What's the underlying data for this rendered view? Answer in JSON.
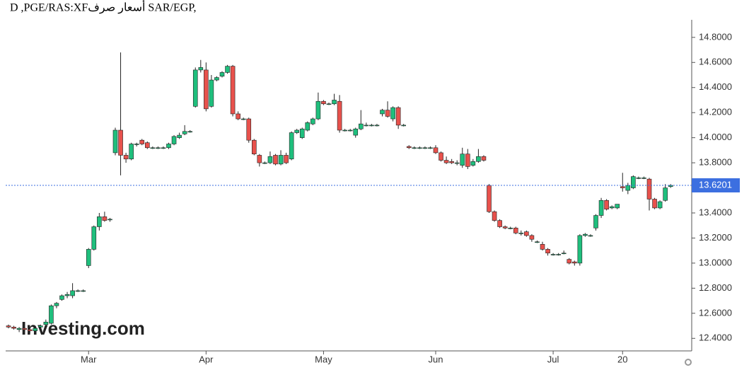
{
  "chart_data": {
    "type": "candlestick",
    "title": "D ,PGE/RAS:XFأسعار صرف SAR/EGP,",
    "watermark": "Investing.com",
    "categories": [
      null,
      null,
      null,
      null,
      null,
      null,
      null,
      null,
      null,
      null,
      null,
      null,
      null,
      null,
      null,
      "Mar",
      null,
      null,
      null,
      null,
      null,
      null,
      null,
      null,
      null,
      null,
      null,
      null,
      null,
      null,
      null,
      null,
      null,
      null,
      null,
      null,
      null,
      "Apr",
      null,
      null,
      null,
      null,
      null,
      null,
      null,
      null,
      null,
      null,
      null,
      null,
      null,
      null,
      null,
      null,
      null,
      null,
      null,
      null,
      null,
      "May",
      null,
      null,
      null,
      null,
      null,
      null,
      null,
      null,
      null,
      null,
      null,
      null,
      null,
      null,
      null,
      null,
      null,
      null,
      null,
      null,
      "Jun",
      null,
      null,
      null,
      null,
      null,
      null,
      null,
      null,
      null,
      null,
      null,
      null,
      null,
      null,
      null,
      null,
      null,
      null,
      null,
      null,
      null,
      "Jul",
      null,
      null,
      null,
      null,
      null,
      null,
      null,
      null,
      null,
      null,
      null,
      null,
      "20",
      null,
      null,
      null,
      null,
      null,
      null,
      null,
      null,
      null
    ],
    "open": [
      12.5,
      12.49,
      12.47,
      12.48,
      12.47,
      12.46,
      12.49,
      12.51,
      12.52,
      12.66,
      12.71,
      12.74,
      12.74,
      12.78,
      12.78,
      12.98,
      13.11,
      13.29,
      13.37,
      13.35,
      13.88,
      14.06,
      13.86,
      13.83,
      13.95,
      13.98,
      13.96,
      13.92,
      13.92,
      13.92,
      13.92,
      13.95,
      14.0,
      14.03,
      14.05,
      14.25,
      14.54,
      14.54,
      14.25,
      14.46,
      14.49,
      14.52,
      14.57,
      14.19,
      14.15,
      14.15,
      13.98,
      13.86,
      13.8,
      13.8,
      13.86,
      13.79,
      13.86,
      13.83,
      14.04,
      14.0,
      14.06,
      14.11,
      14.15,
      14.29,
      14.27,
      14.27,
      14.29,
      14.06,
      14.06,
      14.02,
      14.07,
      14.1,
      14.1,
      14.1,
      14.19,
      14.22,
      14.15,
      14.24,
      14.1,
      13.93,
      13.92,
      13.92,
      13.92,
      13.92,
      13.92,
      13.88,
      13.82,
      13.81,
      13.8,
      13.78,
      13.87,
      13.78,
      13.81,
      13.85,
      13.62,
      13.41,
      13.34,
      13.29,
      13.28,
      13.28,
      13.24,
      13.25,
      13.22,
      13.17,
      13.15,
      13.11,
      13.07,
      13.07,
      13.08,
      13.03,
      13.01,
      13.0,
      13.22,
      13.22,
      13.28,
      13.38,
      13.5,
      13.44,
      13.44,
      13.61,
      13.58,
      13.6,
      13.68,
      13.68,
      13.67,
      13.51,
      13.44,
      13.5,
      13.61
    ],
    "high": [
      12.51,
      12.5,
      12.49,
      12.49,
      12.48,
      12.49,
      12.51,
      12.55,
      12.67,
      12.69,
      12.75,
      12.77,
      12.84,
      12.79,
      12.79,
      13.12,
      13.3,
      13.4,
      13.41,
      13.36,
      14.08,
      14.68,
      13.88,
      13.96,
      13.96,
      13.99,
      13.97,
      13.93,
      13.93,
      13.93,
      13.96,
      14.02,
      14.04,
      14.1,
      14.06,
      14.56,
      14.62,
      14.6,
      14.5,
      14.49,
      14.53,
      14.58,
      14.58,
      14.21,
      14.16,
      14.16,
      13.99,
      13.87,
      13.81,
      13.89,
      13.87,
      13.9,
      13.88,
      14.05,
      14.07,
      14.08,
      14.13,
      14.16,
      14.36,
      14.3,
      14.28,
      14.35,
      14.34,
      14.07,
      14.07,
      14.08,
      14.22,
      14.12,
      14.11,
      14.11,
      14.23,
      14.29,
      14.25,
      14.25,
      14.11,
      13.94,
      13.93,
      13.93,
      13.93,
      13.93,
      13.94,
      13.89,
      13.85,
      13.83,
      13.82,
      13.92,
      13.91,
      13.83,
      13.91,
      13.86,
      13.63,
      13.42,
      13.35,
      13.3,
      13.29,
      13.29,
      13.26,
      13.26,
      13.23,
      13.18,
      13.17,
      13.12,
      13.08,
      13.08,
      13.1,
      13.04,
      13.02,
      13.23,
      13.24,
      13.23,
      13.39,
      13.52,
      13.51,
      13.46,
      13.47,
      13.72,
      13.64,
      13.7,
      13.69,
      13.69,
      13.68,
      13.52,
      13.5,
      13.63,
      13.63
    ],
    "low": [
      12.48,
      12.47,
      12.45,
      12.45,
      12.44,
      12.45,
      12.48,
      12.5,
      12.51,
      12.64,
      12.7,
      12.72,
      12.72,
      12.77,
      12.77,
      12.96,
      13.1,
      13.26,
      13.33,
      13.33,
      13.86,
      13.7,
      13.8,
      13.82,
      13.93,
      13.94,
      13.91,
      13.91,
      13.91,
      13.91,
      13.91,
      13.94,
      13.99,
      14.02,
      14.04,
      14.24,
      14.52,
      14.21,
      14.24,
      14.45,
      14.48,
      14.51,
      14.17,
      14.14,
      14.14,
      13.96,
      13.86,
      13.77,
      13.79,
      13.79,
      13.78,
      13.78,
      13.79,
      13.82,
      14.03,
      13.99,
      14.05,
      14.1,
      14.14,
      14.26,
      14.26,
      14.26,
      14.04,
      14.05,
      14.05,
      14.0,
      14.06,
      14.09,
      14.09,
      14.09,
      14.17,
      14.16,
      14.13,
      14.07,
      14.09,
      13.91,
      13.91,
      13.91,
      13.91,
      13.91,
      13.87,
      13.81,
      13.79,
      13.79,
      13.78,
      13.76,
      13.75,
      13.77,
      13.8,
      13.81,
      13.4,
      13.33,
      13.28,
      13.27,
      13.27,
      13.23,
      13.22,
      13.21,
      13.17,
      13.16,
      13.1,
      13.06,
      13.06,
      13.06,
      13.07,
      12.99,
      12.98,
      12.98,
      13.21,
      13.21,
      13.26,
      13.36,
      13.42,
      13.43,
      13.43,
      13.57,
      13.55,
      13.59,
      13.67,
      13.67,
      13.42,
      13.43,
      13.43,
      13.49,
      13.6
    ],
    "close": [
      12.49,
      12.48,
      12.48,
      12.47,
      12.46,
      12.48,
      12.5,
      12.53,
      12.66,
      12.68,
      12.74,
      12.75,
      12.78,
      12.78,
      12.78,
      13.11,
      13.29,
      13.37,
      13.34,
      13.35,
      14.06,
      13.86,
      13.83,
      13.95,
      13.95,
      13.95,
      13.92,
      13.92,
      13.92,
      13.92,
      13.95,
      14.01,
      14.02,
      14.05,
      14.05,
      14.54,
      14.56,
      14.23,
      14.46,
      14.48,
      14.52,
      14.57,
      14.19,
      14.15,
      14.15,
      13.98,
      13.87,
      13.8,
      13.8,
      13.85,
      13.79,
      13.86,
      13.8,
      14.04,
      14.06,
      14.07,
      14.12,
      14.15,
      14.29,
      14.27,
      14.27,
      14.3,
      14.06,
      14.06,
      14.06,
      14.07,
      14.11,
      14.1,
      14.1,
      14.1,
      14.22,
      14.17,
      14.24,
      14.1,
      14.1,
      13.92,
      13.92,
      13.92,
      13.92,
      13.92,
      13.88,
      13.82,
      13.8,
      13.8,
      13.8,
      13.87,
      13.77,
      13.81,
      13.85,
      13.82,
      13.41,
      13.34,
      13.29,
      13.28,
      13.28,
      13.24,
      13.24,
      13.22,
      13.19,
      13.17,
      13.11,
      13.08,
      13.07,
      13.07,
      13.08,
      13.0,
      13.0,
      13.22,
      13.23,
      13.22,
      13.38,
      13.5,
      13.43,
      13.45,
      13.47,
      13.6,
      13.62,
      13.69,
      13.68,
      13.68,
      13.51,
      13.44,
      13.49,
      13.6,
      13.62
    ],
    "up_color": "#1fbf7d",
    "down_color": "#e8514c",
    "last_price": 13.6201,
    "last_price_color": "#3c6fe0",
    "ylim": [
      12.3,
      14.94
    ],
    "yticks": [
      {
        "value": 12.4,
        "label": "12.4000"
      },
      {
        "value": 12.6,
        "label": "12.6000"
      },
      {
        "value": 12.8,
        "label": "12.8000"
      },
      {
        "value": 13.0,
        "label": "13.0000"
      },
      {
        "value": 13.2,
        "label": "13.2000"
      },
      {
        "value": 13.4,
        "label": "13.4000"
      },
      {
        "value": 13.6,
        "label": "13.6000"
      },
      {
        "value": 13.8,
        "label": "13.8000"
      },
      {
        "value": 14.0,
        "label": "14.0000"
      },
      {
        "value": 14.2,
        "label": "14.2000"
      },
      {
        "value": 14.4,
        "label": "14.4000"
      },
      {
        "value": 14.6,
        "label": "14.6000"
      },
      {
        "value": 14.8,
        "label": "14.8000"
      }
    ],
    "grid": false
  }
}
